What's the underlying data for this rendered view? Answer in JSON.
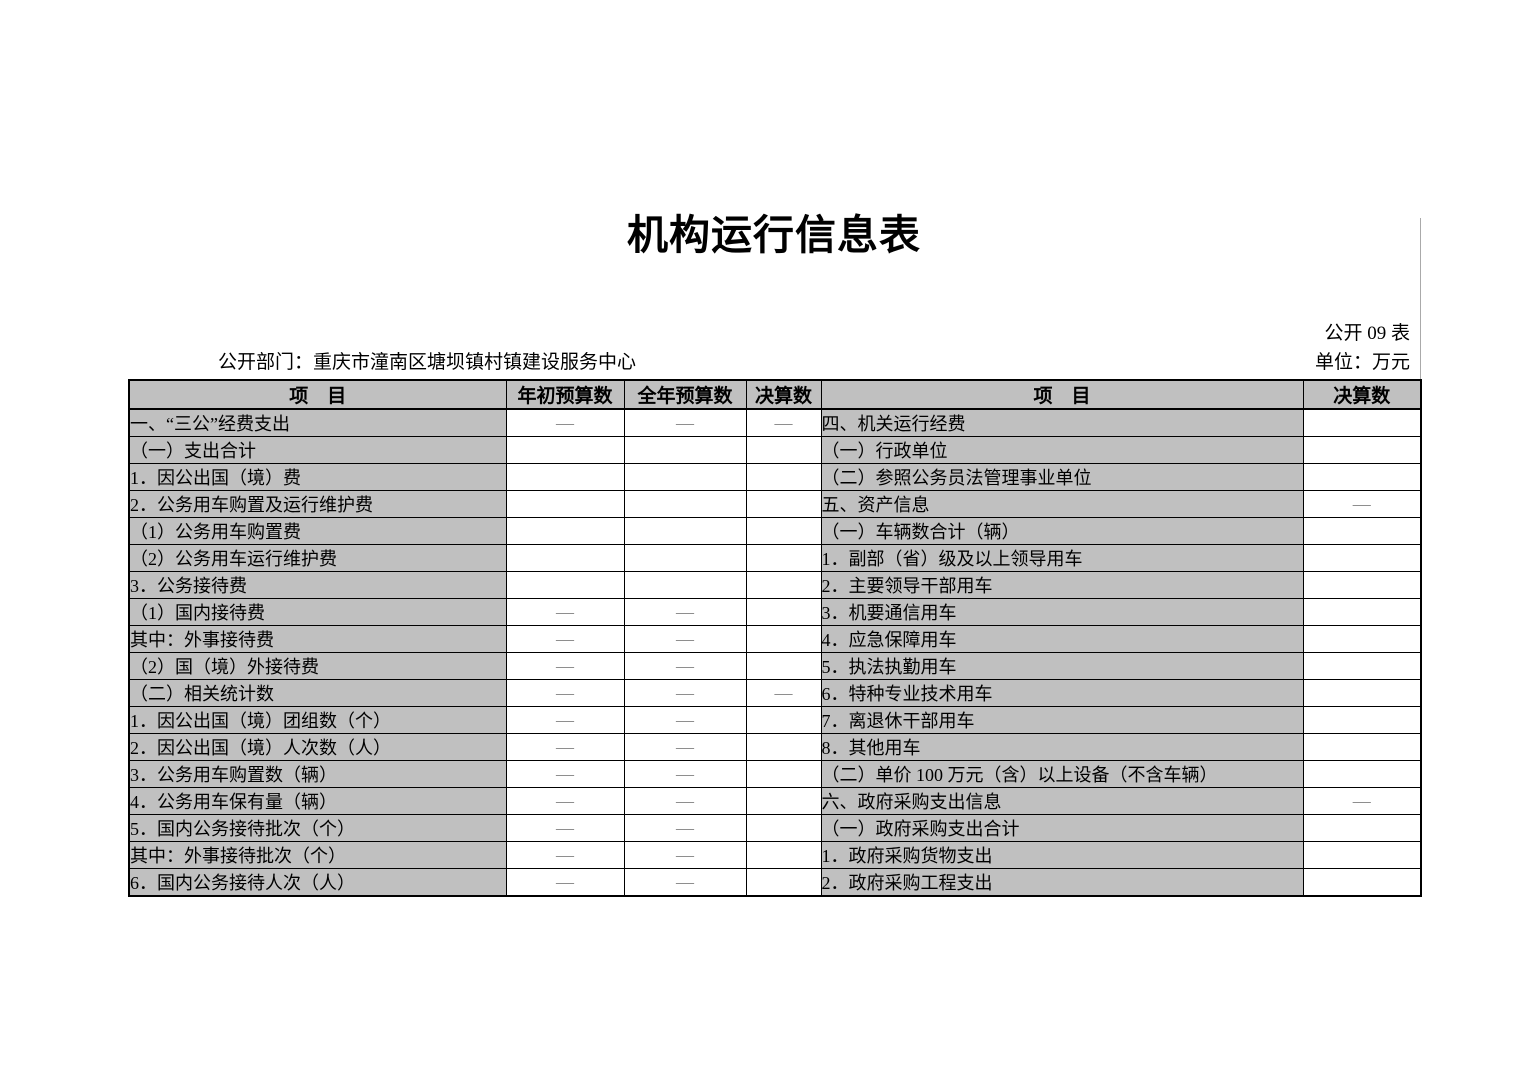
{
  "page": {
    "title": "机构运行信息表",
    "table_code": "公开 09 表",
    "department_label": "公开部门：重庆市潼南区塘坝镇村镇建设服务中心",
    "unit_label": "单位：万元"
  },
  "colors": {
    "cell_gray": "#c0c0c0",
    "dash_gray": "#808080",
    "border_black": "#000000",
    "page_edge_line": "#aaaaaa"
  },
  "table": {
    "left": {
      "headers": [
        "项　目",
        "年初预算数",
        "全年预算数",
        "决算数"
      ],
      "rows": [
        {
          "label": "一、“三公”经费支出",
          "indent": 0,
          "values": [
            "—",
            "—",
            "—"
          ]
        },
        {
          "label": "（一）支出合计",
          "indent": 1,
          "values": [
            "",
            "",
            ""
          ]
        },
        {
          "label": "1．因公出国（境）费",
          "indent": 2,
          "values": [
            "",
            "",
            ""
          ]
        },
        {
          "label": "2．公务用车购置及运行维护费",
          "indent": 2,
          "values": [
            "",
            "",
            ""
          ]
        },
        {
          "label": "（1）公务用车购置费",
          "indent": 3,
          "values": [
            "",
            "",
            ""
          ]
        },
        {
          "label": "（2）公务用车运行维护费",
          "indent": 3,
          "values": [
            "",
            "",
            ""
          ]
        },
        {
          "label": "3．公务接待费",
          "indent": 2,
          "values": [
            "",
            "",
            ""
          ]
        },
        {
          "label": "（1）国内接待费",
          "indent": 3,
          "values": [
            "—",
            "—",
            ""
          ]
        },
        {
          "label": "其中：外事接待费",
          "indent": 4,
          "values": [
            "—",
            "—",
            ""
          ]
        },
        {
          "label": "（2）国（境）外接待费",
          "indent": 3,
          "values": [
            "—",
            "—",
            ""
          ]
        },
        {
          "label": "（二）相关统计数",
          "indent": 1,
          "values": [
            "—",
            "—",
            "—"
          ]
        },
        {
          "label": "1．因公出国（境）团组数（个）",
          "indent": 2,
          "values": [
            "—",
            "—",
            ""
          ]
        },
        {
          "label": "2．因公出国（境）人次数（人）",
          "indent": 2,
          "values": [
            "—",
            "—",
            ""
          ]
        },
        {
          "label": "3．公务用车购置数（辆）",
          "indent": 2,
          "values": [
            "—",
            "—",
            ""
          ]
        },
        {
          "label": "4．公务用车保有量（辆）",
          "indent": 2,
          "values": [
            "—",
            "—",
            ""
          ]
        },
        {
          "label": "5．国内公务接待批次（个）",
          "indent": 2,
          "values": [
            "—",
            "—",
            ""
          ]
        },
        {
          "label": "其中：外事接待批次（个）",
          "indent": 5,
          "values": [
            "—",
            "—",
            ""
          ]
        },
        {
          "label": "6．国内公务接待人次（人）",
          "indent": 2,
          "values": [
            "—",
            "—",
            ""
          ]
        }
      ]
    },
    "right": {
      "headers": [
        "项　目",
        "决算数"
      ],
      "rows": [
        {
          "label": "四、机关运行经费",
          "indent": 0,
          "value": ""
        },
        {
          "label": "（一）行政单位",
          "indent": 1,
          "value": ""
        },
        {
          "label": "（二）参照公务员法管理事业单位",
          "indent": 1,
          "value": ""
        },
        {
          "label": "五、资产信息",
          "indent": 0,
          "value": "—"
        },
        {
          "label": "（一）车辆数合计（辆）",
          "indent": 1,
          "value": ""
        },
        {
          "label": "1．副部（省）级及以上领导用车",
          "indent": 2,
          "value": ""
        },
        {
          "label": "2．主要领导干部用车",
          "indent": 2,
          "value": ""
        },
        {
          "label": "3．机要通信用车",
          "indent": 2,
          "value": ""
        },
        {
          "label": "4．应急保障用车",
          "indent": 2,
          "value": ""
        },
        {
          "label": "5．执法执勤用车",
          "indent": 2,
          "value": ""
        },
        {
          "label": "6．特种专业技术用车",
          "indent": 2,
          "value": ""
        },
        {
          "label": "7．离退休干部用车",
          "indent": 2,
          "value": ""
        },
        {
          "label": "8．其他用车",
          "indent": 2,
          "value": ""
        },
        {
          "label": "（二）单价 100 万元（含）以上设备（不含车辆）",
          "indent": 1,
          "value": ""
        },
        {
          "label": "六、政府采购支出信息",
          "indent": 0,
          "value": "—"
        },
        {
          "label": "（一）政府采购支出合计",
          "indent": 1,
          "value": ""
        },
        {
          "label": "1．政府采购货物支出",
          "indent": 2,
          "value": ""
        },
        {
          "label": "2．政府采购工程支出",
          "indent": 2,
          "value": ""
        }
      ]
    }
  }
}
